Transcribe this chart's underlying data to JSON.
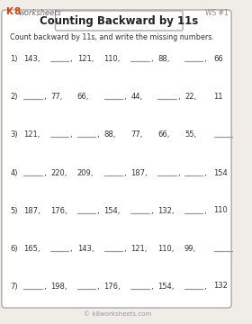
{
  "title": "Counting Backward by 11s",
  "ws_label": "WS #1",
  "instruction": "Count backward by 11s, and write the missing numbers.",
  "footer": "© k8worksheets.com",
  "bg_color": "#f0ede8",
  "rows": [
    {
      "num": "1)",
      "items": [
        {
          "text": "143,",
          "blank": false
        },
        {
          "text": "",
          "blank": true,
          "comma": true
        },
        {
          "text": "121,",
          "blank": false
        },
        {
          "text": "110,",
          "blank": false
        },
        {
          "text": "",
          "blank": true,
          "comma": true
        },
        {
          "text": "88,",
          "blank": false
        },
        {
          "text": "",
          "blank": true,
          "comma": true
        },
        {
          "text": "66",
          "blank": false
        }
      ]
    },
    {
      "num": "2)",
      "items": [
        {
          "text": "",
          "blank": true,
          "comma": true
        },
        {
          "text": "77,",
          "blank": false
        },
        {
          "text": "66,",
          "blank": false
        },
        {
          "text": "",
          "blank": true,
          "comma": true
        },
        {
          "text": "44,",
          "blank": false
        },
        {
          "text": "",
          "blank": true,
          "comma": true
        },
        {
          "text": "22,",
          "blank": false
        },
        {
          "text": "11",
          "blank": false
        }
      ]
    },
    {
      "num": "3)",
      "items": [
        {
          "text": "121,",
          "blank": false
        },
        {
          "text": "",
          "blank": true,
          "comma": true
        },
        {
          "text": "",
          "blank": true,
          "comma": true
        },
        {
          "text": "88,",
          "blank": false
        },
        {
          "text": "77,",
          "blank": false
        },
        {
          "text": "66,",
          "blank": false
        },
        {
          "text": "55,",
          "blank": false
        },
        {
          "text": "",
          "blank": true,
          "comma": false
        }
      ]
    },
    {
      "num": "4)",
      "items": [
        {
          "text": "",
          "blank": true,
          "comma": true
        },
        {
          "text": "220,",
          "blank": false
        },
        {
          "text": "209,",
          "blank": false
        },
        {
          "text": "",
          "blank": true,
          "comma": true
        },
        {
          "text": "187,",
          "blank": false
        },
        {
          "text": "",
          "blank": true,
          "comma": true
        },
        {
          "text": "",
          "blank": true,
          "comma": true
        },
        {
          "text": "154",
          "blank": false
        }
      ]
    },
    {
      "num": "5)",
      "items": [
        {
          "text": "187,",
          "blank": false
        },
        {
          "text": "176,",
          "blank": false
        },
        {
          "text": "",
          "blank": true,
          "comma": true
        },
        {
          "text": "154,",
          "blank": false
        },
        {
          "text": "",
          "blank": true,
          "comma": true
        },
        {
          "text": "132,",
          "blank": false
        },
        {
          "text": "",
          "blank": true,
          "comma": true
        },
        {
          "text": "110",
          "blank": false
        }
      ]
    },
    {
      "num": "6)",
      "items": [
        {
          "text": "165,",
          "blank": false
        },
        {
          "text": "",
          "blank": true,
          "comma": true
        },
        {
          "text": "143,",
          "blank": false
        },
        {
          "text": "",
          "blank": true,
          "comma": true
        },
        {
          "text": "121,",
          "blank": false
        },
        {
          "text": "110,",
          "blank": false
        },
        {
          "text": "99,",
          "blank": false
        },
        {
          "text": "",
          "blank": true,
          "comma": false
        }
      ]
    },
    {
      "num": "7)",
      "items": [
        {
          "text": "",
          "blank": true,
          "comma": true
        },
        {
          "text": "198,",
          "blank": false
        },
        {
          "text": "",
          "blank": true,
          "comma": true
        },
        {
          "text": "176,",
          "blank": false
        },
        {
          "text": "",
          "blank": true,
          "comma": true
        },
        {
          "text": "154,",
          "blank": false
        },
        {
          "text": "",
          "blank": true,
          "comma": true
        },
        {
          "text": "132",
          "blank": false
        }
      ]
    }
  ]
}
